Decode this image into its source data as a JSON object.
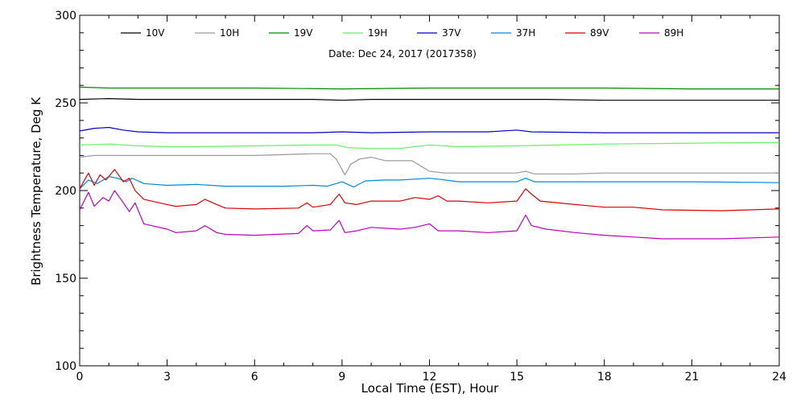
{
  "chart_data": {
    "type": "line",
    "subtitle": "Date: Dec 24, 2017 (2017358)",
    "xlabel": "Local Time (EST), Hour",
    "ylabel": "Brightness Temperature, Deg K",
    "xlim": [
      0,
      24
    ],
    "ylim": [
      100,
      300
    ],
    "x_ticks": [
      0,
      3,
      6,
      9,
      12,
      15,
      18,
      21,
      24
    ],
    "y_ticks": [
      100,
      150,
      200,
      250,
      300
    ],
    "grid": false,
    "legend_position": "top",
    "series": [
      {
        "name": "10V",
        "color": "#000000",
        "points": [
          [
            0,
            252
          ],
          [
            1,
            252.5
          ],
          [
            2,
            252
          ],
          [
            4,
            252
          ],
          [
            6,
            252
          ],
          [
            8,
            252
          ],
          [
            9,
            251.5
          ],
          [
            10,
            252
          ],
          [
            12,
            252
          ],
          [
            14,
            252
          ],
          [
            16,
            252
          ],
          [
            18,
            251.5
          ],
          [
            20,
            251.5
          ],
          [
            22,
            251.5
          ],
          [
            24,
            251.5
          ]
        ]
      },
      {
        "name": "10H",
        "color": "#9a9a9a",
        "points": [
          [
            0,
            219
          ],
          [
            0.5,
            220
          ],
          [
            1,
            220
          ],
          [
            2,
            220
          ],
          [
            4,
            220
          ],
          [
            6,
            220
          ],
          [
            8,
            221
          ],
          [
            8.6,
            221
          ],
          [
            8.8,
            218
          ],
          [
            9.1,
            209
          ],
          [
            9.3,
            215
          ],
          [
            9.6,
            218
          ],
          [
            10,
            219
          ],
          [
            10.5,
            217
          ],
          [
            11,
            217
          ],
          [
            11.4,
            217
          ],
          [
            11.8,
            213
          ],
          [
            12,
            211
          ],
          [
            12.5,
            210
          ],
          [
            13,
            210
          ],
          [
            15,
            210
          ],
          [
            15.3,
            211
          ],
          [
            15.6,
            209.5
          ],
          [
            17,
            209.5
          ],
          [
            18,
            210
          ],
          [
            20,
            210
          ],
          [
            22,
            210
          ],
          [
            24,
            210
          ]
        ]
      },
      {
        "name": "19V",
        "color": "#008800",
        "points": [
          [
            0,
            259
          ],
          [
            1,
            258.5
          ],
          [
            3,
            258.5
          ],
          [
            6,
            258.5
          ],
          [
            9,
            258
          ],
          [
            12,
            258.5
          ],
          [
            15,
            258.5
          ],
          [
            18,
            258.5
          ],
          [
            21,
            258
          ],
          [
            24,
            258
          ]
        ]
      },
      {
        "name": "19H",
        "color": "#66ee66",
        "points": [
          [
            0,
            226
          ],
          [
            1,
            226.5
          ],
          [
            2,
            225.5
          ],
          [
            3,
            225
          ],
          [
            4,
            225
          ],
          [
            6,
            225.5
          ],
          [
            8,
            226
          ],
          [
            8.8,
            226
          ],
          [
            9.2,
            224.5
          ],
          [
            10,
            224
          ],
          [
            11,
            224
          ],
          [
            12,
            226
          ],
          [
            13,
            225
          ],
          [
            15,
            225.5
          ],
          [
            18,
            226.5
          ],
          [
            21,
            227
          ],
          [
            24,
            227.5
          ]
        ]
      },
      {
        "name": "37V",
        "color": "#0000cc",
        "points": [
          [
            0,
            234
          ],
          [
            0.5,
            235.5
          ],
          [
            1,
            236
          ],
          [
            1.5,
            234.5
          ],
          [
            2,
            233.5
          ],
          [
            3,
            233
          ],
          [
            6,
            233
          ],
          [
            8,
            233
          ],
          [
            9,
            233.5
          ],
          [
            10,
            233
          ],
          [
            12,
            233.5
          ],
          [
            14,
            233.5
          ],
          [
            15,
            234.5
          ],
          [
            15.5,
            233.5
          ],
          [
            18,
            233
          ],
          [
            21,
            233
          ],
          [
            24,
            233
          ]
        ]
      },
      {
        "name": "37H",
        "color": "#0088dd",
        "points": [
          [
            0,
            201
          ],
          [
            0.3,
            206
          ],
          [
            0.6,
            204
          ],
          [
            1,
            208
          ],
          [
            1.3,
            207
          ],
          [
            1.6,
            205
          ],
          [
            1.8,
            207
          ],
          [
            2.2,
            204
          ],
          [
            3,
            203
          ],
          [
            4,
            203.5
          ],
          [
            5,
            202.5
          ],
          [
            7,
            202.5
          ],
          [
            8,
            203
          ],
          [
            8.5,
            202.5
          ],
          [
            8.8,
            204
          ],
          [
            9,
            205
          ],
          [
            9.4,
            202
          ],
          [
            9.8,
            205.5
          ],
          [
            10.5,
            206
          ],
          [
            11,
            206
          ],
          [
            11.5,
            206.5
          ],
          [
            12,
            207
          ],
          [
            12.3,
            206.5
          ],
          [
            13,
            205
          ],
          [
            15,
            205
          ],
          [
            15.3,
            207
          ],
          [
            15.6,
            205
          ],
          [
            18,
            205
          ],
          [
            21,
            205
          ],
          [
            24,
            204.5
          ]
        ]
      },
      {
        "name": "89V",
        "color": "#dd0000",
        "points": [
          [
            0,
            201
          ],
          [
            0.3,
            210
          ],
          [
            0.5,
            203
          ],
          [
            0.7,
            209
          ],
          [
            0.9,
            206
          ],
          [
            1.2,
            212
          ],
          [
            1.5,
            205
          ],
          [
            1.7,
            207
          ],
          [
            1.9,
            200
          ],
          [
            2.2,
            195
          ],
          [
            3,
            192
          ],
          [
            3.3,
            191
          ],
          [
            4,
            192
          ],
          [
            4.3,
            195
          ],
          [
            4.7,
            192
          ],
          [
            5,
            190
          ],
          [
            6,
            189.5
          ],
          [
            7.5,
            190
          ],
          [
            7.8,
            193
          ],
          [
            8,
            190.5
          ],
          [
            8.6,
            192
          ],
          [
            8.9,
            198
          ],
          [
            9.1,
            193
          ],
          [
            9.5,
            192
          ],
          [
            10,
            194
          ],
          [
            11,
            194
          ],
          [
            11.5,
            196
          ],
          [
            12,
            195
          ],
          [
            12.3,
            197
          ],
          [
            12.6,
            194
          ],
          [
            13,
            194
          ],
          [
            14,
            193
          ],
          [
            15,
            194
          ],
          [
            15.3,
            201
          ],
          [
            15.5,
            198
          ],
          [
            15.8,
            194
          ],
          [
            17,
            192
          ],
          [
            18,
            190.5
          ],
          [
            19,
            190.5
          ],
          [
            20,
            189
          ],
          [
            22,
            188.5
          ],
          [
            24,
            189.5
          ]
        ]
      },
      {
        "name": "89H",
        "color": "#bb00bb",
        "points": [
          [
            0,
            189
          ],
          [
            0.3,
            199
          ],
          [
            0.5,
            191
          ],
          [
            0.8,
            196
          ],
          [
            1,
            194
          ],
          [
            1.2,
            200
          ],
          [
            1.5,
            193
          ],
          [
            1.7,
            188
          ],
          [
            1.9,
            193
          ],
          [
            2.2,
            181
          ],
          [
            3,
            178
          ],
          [
            3.3,
            176
          ],
          [
            4,
            177
          ],
          [
            4.3,
            180
          ],
          [
            4.7,
            176
          ],
          [
            5,
            175
          ],
          [
            6,
            174.5
          ],
          [
            7.5,
            175.5
          ],
          [
            7.8,
            180
          ],
          [
            8,
            177
          ],
          [
            8.6,
            177.5
          ],
          [
            8.9,
            183
          ],
          [
            9.1,
            176
          ],
          [
            9.5,
            177
          ],
          [
            10,
            179
          ],
          [
            11,
            178
          ],
          [
            11.5,
            179
          ],
          [
            12,
            181
          ],
          [
            12.3,
            177
          ],
          [
            13,
            177
          ],
          [
            14,
            176
          ],
          [
            15,
            177
          ],
          [
            15.3,
            186
          ],
          [
            15.5,
            180
          ],
          [
            16,
            178
          ],
          [
            17,
            176
          ],
          [
            18,
            174.5
          ],
          [
            19,
            173.5
          ],
          [
            20,
            172.5
          ],
          [
            22,
            172.5
          ],
          [
            24,
            173.5
          ]
        ]
      }
    ]
  }
}
